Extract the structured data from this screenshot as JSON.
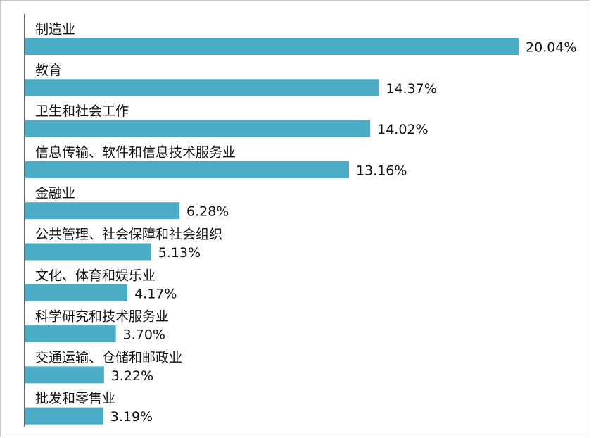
{
  "chart_data": {
    "type": "barh",
    "categories": [
      "制造业",
      "教育",
      "卫生和社会工作",
      "信息传输、软件和信息技术服务业",
      "金融业",
      "公共管理、社会保障和社会组织",
      "文化、体育和娱乐业",
      "科学研究和技术服务业",
      "交通运输、仓储和邮政业",
      "批发和零售业"
    ],
    "values": [
      20.04,
      14.37,
      14.02,
      13.16,
      6.28,
      5.13,
      4.17,
      3.7,
      3.22,
      3.19
    ],
    "value_labels": [
      "20.04%",
      "14.37%",
      "14.02%",
      "13.16%",
      "6.28%",
      "5.13%",
      "4.17%",
      "3.70%",
      "3.22%",
      "3.19%"
    ],
    "color": "#4bacc6"
  }
}
